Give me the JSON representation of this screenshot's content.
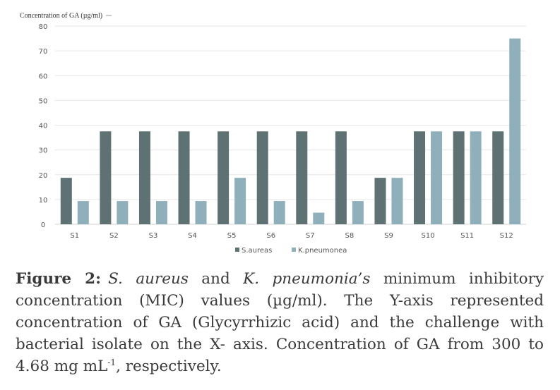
{
  "chart_data": {
    "type": "bar",
    "title": "",
    "ylabel": "Concentration of GA (µg/ml)",
    "xlabel": "",
    "ylim": [
      0,
      80
    ],
    "yticks": [
      0,
      10,
      20,
      30,
      40,
      50,
      60,
      70,
      80
    ],
    "categories": [
      "S1",
      "S2",
      "S3",
      "S4",
      "S5",
      "S6",
      "S7",
      "S8",
      "S9",
      "S10",
      "S11",
      "S12"
    ],
    "series": [
      {
        "name": "S.aureas",
        "color": "#5e7173",
        "values": [
          18.75,
          37.5,
          37.5,
          37.5,
          37.5,
          37.5,
          37.5,
          37.5,
          18.75,
          37.5,
          37.5,
          37.5
        ]
      },
      {
        "name": "K.pneumonea",
        "color": "#8fb0bb",
        "values": [
          9.37,
          9.37,
          9.37,
          9.37,
          18.75,
          9.37,
          4.68,
          9.37,
          18.75,
          37.5,
          37.5,
          75
        ]
      }
    ],
    "grid": true,
    "legend": "bottom"
  },
  "caption": {
    "label": "Figure 2:",
    "species1": "S. aureus",
    "and": " and ",
    "species2": "K. pneumonia’s",
    "text1": " minimum inhibitory concentration (MIC) values (µg/ml). The Y-axis represented concentration of GA (Glycyrrhizic acid) and the challenge with bacterial isolate on the X- axis. Concentration of GA from 300 to 4.68 mg mL",
    "sup": "-1",
    "text2": ",  respectively."
  }
}
